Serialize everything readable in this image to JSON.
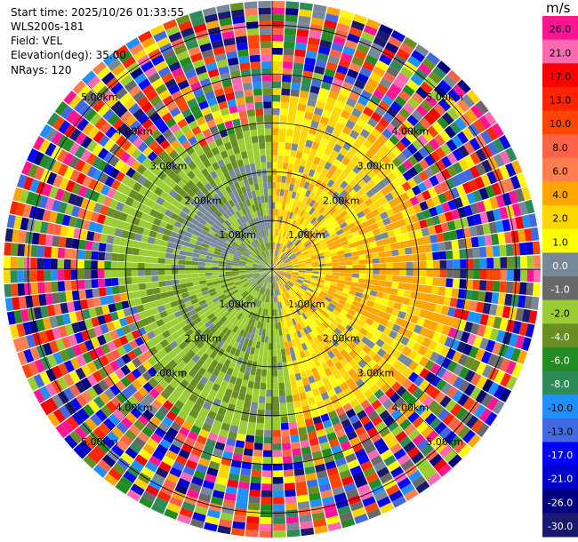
{
  "header": {
    "start_time": "Start time: 2025/10/26 01:33:55",
    "instrument": "WLS200s-181",
    "field": "Field: VEL",
    "elevation": "Elevation(deg): 35.00",
    "nrays": "NRays: 120"
  },
  "colorbar": {
    "unit": "m/s",
    "ticks": [
      "26.0",
      "21.0",
      "17.0",
      "13.0",
      "10.0",
      "8.0",
      "6.0",
      "4.0",
      "2.0",
      "1.0",
      "0.0",
      "-1.0",
      "-2.0",
      "-4.0",
      "-6.0",
      "-8.0",
      "-10.0",
      "-13.0",
      "-17.0",
      "-21.0",
      "-26.0",
      "-30.0"
    ],
    "colors": [
      "#ff1493",
      "#ff69b4",
      "#ff0000",
      "#ff2400",
      "#ff4500",
      "#ff6347",
      "#ff7f50",
      "#ffa500",
      "#ffd700",
      "#ffff00",
      "#778899",
      "#696969",
      "#9acd32",
      "#6b8e23",
      "#228b22",
      "#2e8b57",
      "#1e90ff",
      "#4169e1",
      "#0000ff",
      "#0000cd",
      "#000080",
      "#191970"
    ]
  },
  "chart_data": {
    "type": "ppi",
    "field": "VEL",
    "unit": "m/s",
    "range_rings_km": [
      1,
      2,
      3,
      4,
      5
    ],
    "ring_labels": [
      "1.00km",
      "2.00km",
      "3.00km",
      "4.00km",
      "5.00km"
    ],
    "max_range_km": 5.5,
    "nrays": 120,
    "gates_per_ray": 40,
    "noise_start_km": 3.0,
    "sectors": [
      {
        "azimuth_from_deg": 0,
        "azimuth_to_deg": 170,
        "near_range_velocity": "1.0 to 4.0"
      },
      {
        "azimuth_from_deg": 170,
        "azimuth_to_deg": 360,
        "near_range_velocity": "-4.0 to -1.0"
      }
    ]
  }
}
